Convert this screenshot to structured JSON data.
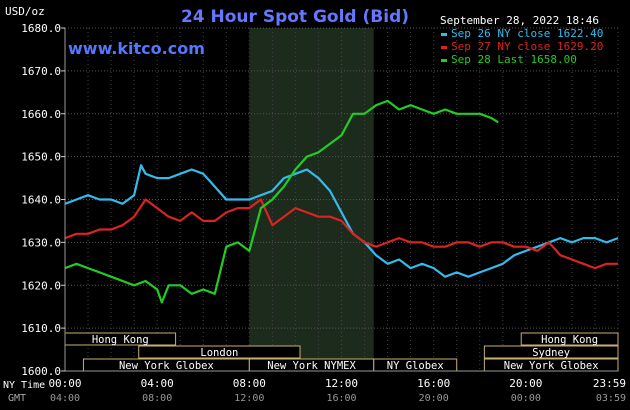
{
  "chart_data": {
    "type": "line",
    "title": "24 Hour Spot Gold (Bid)",
    "watermark": "www.kitco.com",
    "timestamp": "September 28, 2022 18:46",
    "y_unit": "USD/oz",
    "ylim": [
      1600,
      1680
    ],
    "y_ticks": [
      "1680.0",
      "1670.0",
      "1660.0",
      "1650.0",
      "1640.0",
      "1630.0",
      "1620.0",
      "1610.0",
      "1600.0"
    ],
    "x_label_primary": "NY Time",
    "x_label_secondary": "GMT",
    "x_ticks_ny": [
      "00:00",
      "04:00",
      "08:00",
      "12:00",
      "16:00",
      "20:00",
      "23:59"
    ],
    "x_ticks_gmt": [
      "04:00",
      "08:00",
      "12:00",
      "16:00",
      "20:00",
      "00:00",
      "03:59"
    ],
    "grid": true,
    "legend_position": "top-right",
    "highlight_range_hours": [
      8.0,
      13.4
    ],
    "series": [
      {
        "name": "Sep 26 NY close 1622.40",
        "color": "#33bbee",
        "x": [
          0,
          0.5,
          1,
          1.5,
          2,
          2.5,
          3,
          3.3,
          3.5,
          4,
          4.5,
          5,
          5.5,
          6,
          6.5,
          7,
          7.5,
          8,
          8.5,
          9,
          9.5,
          10,
          10.5,
          11,
          11.5,
          12,
          12.5,
          13,
          13.5,
          14,
          14.5,
          15,
          15.5,
          16,
          16.5,
          17,
          17.5,
          18,
          18.5,
          19,
          19.5,
          20,
          20.5,
          21,
          21.5,
          22,
          22.5,
          23,
          23.5,
          24
        ],
        "y": [
          1639,
          1640,
          1641,
          1640,
          1640,
          1639,
          1641,
          1648,
          1646,
          1645,
          1645,
          1646,
          1647,
          1646,
          1643,
          1640,
          1640,
          1640,
          1641,
          1642,
          1645,
          1646,
          1647,
          1645,
          1642,
          1637,
          1632,
          1630,
          1627,
          1625,
          1626,
          1624,
          1625,
          1624,
          1622,
          1623,
          1622,
          1623,
          1624,
          1625,
          1627,
          1628,
          1629,
          1630,
          1631,
          1630,
          1631,
          1631,
          1630,
          1631
        ]
      },
      {
        "name": "Sep 27 NY close 1629.20",
        "color": "#dd2222",
        "x": [
          0,
          0.5,
          1,
          1.5,
          2,
          2.5,
          3,
          3.5,
          4,
          4.5,
          5,
          5.5,
          6,
          6.5,
          7,
          7.5,
          8,
          8.5,
          9,
          9.5,
          10,
          10.5,
          11,
          11.5,
          12,
          12.5,
          13,
          13.5,
          14,
          14.5,
          15,
          15.5,
          16,
          16.5,
          17,
          17.5,
          18,
          18.5,
          19,
          19.5,
          20,
          20.5,
          21,
          21.5,
          22,
          22.5,
          23,
          23.5,
          24
        ],
        "y": [
          1631,
          1632,
          1632,
          1633,
          1633,
          1634,
          1636,
          1640,
          1638,
          1636,
          1635,
          1637,
          1635,
          1635,
          1637,
          1638,
          1638,
          1640,
          1634,
          1636,
          1638,
          1637,
          1636,
          1636,
          1635,
          1632,
          1630,
          1629,
          1630,
          1631,
          1630,
          1630,
          1629,
          1629,
          1630,
          1630,
          1629,
          1630,
          1630,
          1629,
          1629,
          1628,
          1630,
          1627,
          1626,
          1625,
          1624,
          1625,
          1625
        ]
      },
      {
        "name": "Sep 28 Last 1658.00",
        "color": "#22cc22",
        "x": [
          0,
          0.5,
          1,
          1.5,
          2,
          2.5,
          3,
          3.5,
          4,
          4.2,
          4.5,
          5,
          5.5,
          6,
          6.5,
          7,
          7.5,
          8,
          8.5,
          9,
          9.5,
          10,
          10.5,
          11,
          11.5,
          12,
          12.5,
          13,
          13.5,
          14,
          14.5,
          15,
          15.5,
          16,
          16.5,
          17,
          17.5,
          18,
          18.5,
          18.8
        ],
        "y": [
          1624,
          1625,
          1624,
          1623,
          1622,
          1621,
          1620,
          1621,
          1619,
          1616,
          1620,
          1620,
          1618,
          1619,
          1618,
          1629,
          1630,
          1628,
          1638,
          1640,
          1643,
          1647,
          1650,
          1651,
          1653,
          1655,
          1660,
          1660,
          1662,
          1663,
          1661,
          1662,
          1661,
          1660,
          1661,
          1660,
          1660,
          1660,
          1659,
          1658
        ]
      }
    ],
    "sessions": [
      {
        "label": "Hong Kong",
        "start": 0.0,
        "end": 4.8,
        "row": 0
      },
      {
        "label": "Hong Kong",
        "start": 19.8,
        "end": 24.0,
        "row": 0
      },
      {
        "label": "London",
        "start": 3.2,
        "end": 10.2,
        "row": 1
      },
      {
        "label": "Sydney",
        "start": 18.2,
        "end": 24.0,
        "row": 1
      },
      {
        "label": "New York Globex",
        "start": 0.8,
        "end": 8.0,
        "row": 2
      },
      {
        "label": "New York NYMEX",
        "start": 8.0,
        "end": 13.4,
        "row": 2
      },
      {
        "label": "NY Globex",
        "start": 13.4,
        "end": 17.0,
        "row": 2
      },
      {
        "label": "New York Globex",
        "start": 18.2,
        "end": 24.0,
        "row": 2
      }
    ]
  }
}
